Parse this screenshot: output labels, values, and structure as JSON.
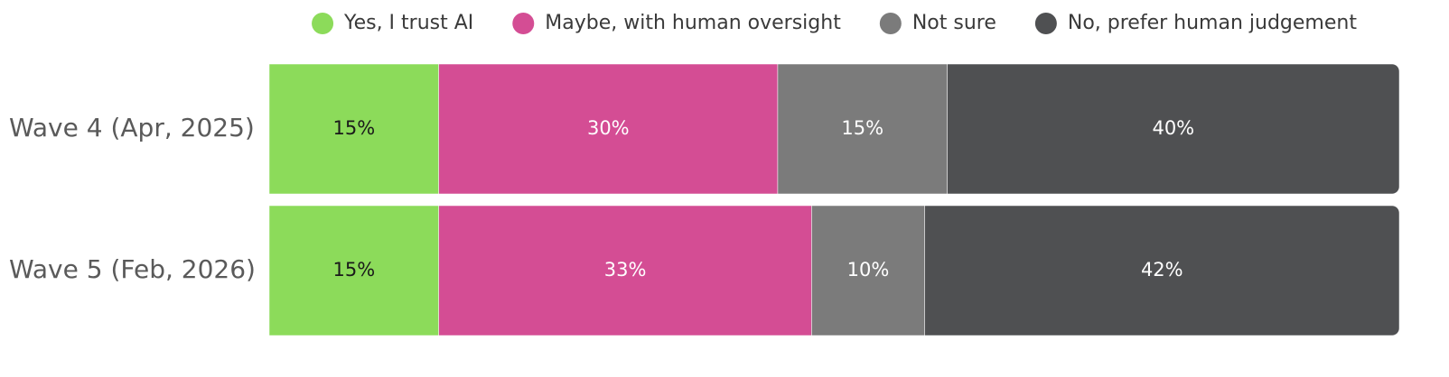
{
  "chart_data": {
    "type": "stacked-bar-horizontal",
    "categories": [
      "Wave 4 (Apr, 2025)",
      "Wave 5 (Feb, 2026)"
    ],
    "series": [
      {
        "name": "Yes, I trust AI",
        "color": "#8cdb5a",
        "values": [
          15,
          15
        ],
        "value_labels": [
          "15%",
          "15%"
        ]
      },
      {
        "name": "Maybe, with human oversight",
        "color": "#d44d94",
        "values": [
          30,
          33
        ],
        "value_labels": [
          "30%",
          "33%"
        ]
      },
      {
        "name": "Not sure",
        "color": "#7b7b7b",
        "values": [
          15,
          10
        ],
        "value_labels": [
          "15%",
          "10%"
        ]
      },
      {
        "name": "No, prefer human judgement",
        "color": "#4f5052",
        "values": [
          40,
          42
        ],
        "value_labels": [
          "40%",
          "42%"
        ]
      }
    ],
    "legend": "top"
  }
}
